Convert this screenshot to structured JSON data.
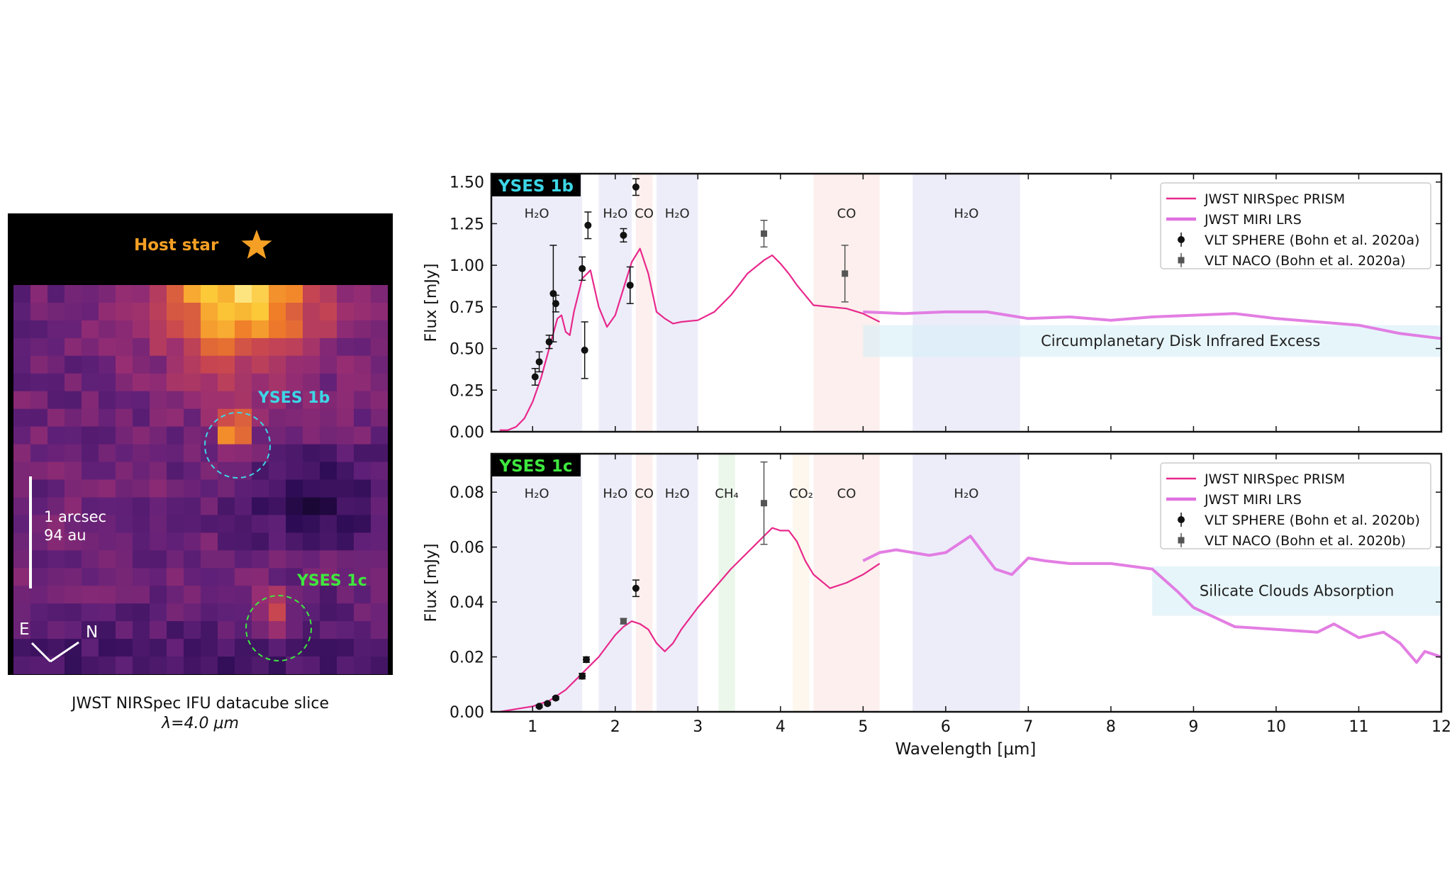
{
  "image_panel": {
    "host_label": "Host star",
    "planet_b_label": "YSES 1b",
    "planet_c_label": "YSES 1c",
    "scalebar_label_1": "1 arcsec",
    "scalebar_label_2": "94 au",
    "compass_east": "E",
    "compass_north": "N",
    "caption_line1": "JWST NIRSpec IFU datacube slice",
    "caption_line2": "λ=4.0 μm",
    "colors": {
      "host": "#f5a024",
      "planet_b": "#3dd6e6",
      "planet_c": "#3ee83e"
    }
  },
  "chart_data": [
    {
      "type": "line",
      "panel_label": "YSES 1b",
      "panel_label_color": "#3dd6e6",
      "ylabel": "Flux [mJy]",
      "xlabel": "",
      "xlim": [
        0.5,
        12.0
      ],
      "ylim": [
        0.0,
        1.55
      ],
      "yticks": [
        0.0,
        0.25,
        0.5,
        0.75,
        1.0,
        1.25,
        1.5
      ],
      "ytick_labels": [
        "0.00",
        "0.25",
        "0.50",
        "0.75",
        "1.00",
        "1.25",
        "1.50"
      ],
      "xticks": [
        1,
        2,
        3,
        4,
        5,
        6,
        7,
        8,
        9,
        10,
        11,
        12
      ],
      "bands": [
        {
          "x0": 0.5,
          "x1": 1.6,
          "label": "H₂O",
          "color": "#9b9be6"
        },
        {
          "x0": 1.8,
          "x1": 2.2,
          "label": "H₂O",
          "color": "#9b9be6"
        },
        {
          "x0": 2.25,
          "x1": 2.45,
          "label": "CO",
          "color": "#f0a59b"
        },
        {
          "x0": 2.5,
          "x1": 3.0,
          "label": "H₂O",
          "color": "#9b9be6"
        },
        {
          "x0": 4.4,
          "x1": 5.2,
          "label": "CO",
          "color": "#f0a59b"
        },
        {
          "x0": 5.6,
          "x1": 6.9,
          "label": "H₂O",
          "color": "#9b9be6"
        }
      ],
      "feature_box": {
        "x0": 5.0,
        "x1": 12.0,
        "y0": 0.45,
        "y1": 0.64,
        "label": "Circumplanetary Disk Infrared Excess",
        "color": "#d6eef7"
      },
      "series": [
        {
          "name": "JWST NIRSpec PRISM",
          "color": "#e8288c",
          "x": [
            0.6,
            0.7,
            0.8,
            0.9,
            1.0,
            1.1,
            1.2,
            1.3,
            1.35,
            1.4,
            1.45,
            1.5,
            1.6,
            1.7,
            1.8,
            1.9,
            2.0,
            2.1,
            2.2,
            2.3,
            2.4,
            2.5,
            2.6,
            2.7,
            2.8,
            3.0,
            3.2,
            3.4,
            3.6,
            3.8,
            3.9,
            4.0,
            4.1,
            4.2,
            4.4,
            4.6,
            4.8,
            5.0,
            5.2
          ],
          "y": [
            0.01,
            0.01,
            0.03,
            0.08,
            0.18,
            0.32,
            0.5,
            0.68,
            0.7,
            0.6,
            0.58,
            0.72,
            0.92,
            0.97,
            0.75,
            0.63,
            0.7,
            0.86,
            1.02,
            1.1,
            0.95,
            0.72,
            0.68,
            0.65,
            0.66,
            0.67,
            0.72,
            0.82,
            0.95,
            1.03,
            1.06,
            1.01,
            0.95,
            0.88,
            0.76,
            0.75,
            0.74,
            0.71,
            0.66
          ]
        },
        {
          "name": "JWST MIRI LRS",
          "color": "#e070e0",
          "x": [
            5.0,
            5.5,
            6.0,
            6.5,
            7.0,
            7.5,
            8.0,
            8.5,
            9.0,
            9.5,
            10.0,
            10.5,
            11.0,
            11.5,
            12.0
          ],
          "y": [
            0.72,
            0.71,
            0.72,
            0.72,
            0.68,
            0.69,
            0.67,
            0.69,
            0.7,
            0.71,
            0.68,
            0.66,
            0.64,
            0.59,
            0.56
          ]
        }
      ],
      "errorbar_series": [
        {
          "name": "VLT SPHERE (Bohn et al. 2020a)",
          "marker": "circle",
          "color": "#111111",
          "points": [
            [
              1.03,
              0.33,
              0.05
            ],
            [
              1.08,
              0.42,
              0.06
            ],
            [
              1.2,
              0.54,
              0.04
            ],
            [
              1.25,
              0.83,
              0.29
            ],
            [
              1.28,
              0.77,
              0.05
            ],
            [
              1.6,
              0.98,
              0.07
            ],
            [
              1.63,
              0.49,
              0.17
            ],
            [
              1.67,
              1.24,
              0.08
            ],
            [
              2.1,
              1.18,
              0.04
            ],
            [
              2.18,
              0.88,
              0.11
            ],
            [
              2.25,
              1.47,
              0.05
            ]
          ]
        },
        {
          "name": "VLT NACO (Bohn et al. 2020a)",
          "marker": "square",
          "color": "#555555",
          "points": [
            [
              3.8,
              1.19,
              0.08
            ],
            [
              4.78,
              0.95,
              0.17
            ]
          ]
        }
      ]
    },
    {
      "type": "line",
      "panel_label": "YSES 1c",
      "panel_label_color": "#3ee83e",
      "ylabel": "Flux [mJy]",
      "xlabel": "Wavelength [μm]",
      "xlim": [
        0.5,
        12.0
      ],
      "ylim": [
        0.0,
        0.094
      ],
      "yticks": [
        0.0,
        0.02,
        0.04,
        0.06,
        0.08
      ],
      "ytick_labels": [
        "0.00",
        "0.02",
        "0.04",
        "0.06",
        "0.08"
      ],
      "xticks": [
        1,
        2,
        3,
        4,
        5,
        6,
        7,
        8,
        9,
        10,
        11,
        12
      ],
      "bands": [
        {
          "x0": 0.5,
          "x1": 1.6,
          "label": "H₂O",
          "color": "#9b9be6"
        },
        {
          "x0": 1.8,
          "x1": 2.2,
          "label": "H₂O",
          "color": "#9b9be6"
        },
        {
          "x0": 2.25,
          "x1": 2.45,
          "label": "CO",
          "color": "#f0a59b"
        },
        {
          "x0": 2.5,
          "x1": 3.0,
          "label": "H₂O",
          "color": "#9b9be6"
        },
        {
          "x0": 3.25,
          "x1": 3.45,
          "label": "CH₄",
          "color": "#8fd48f"
        },
        {
          "x0": 4.15,
          "x1": 4.35,
          "label": "CO₂",
          "color": "#f5d49b"
        },
        {
          "x0": 4.4,
          "x1": 5.2,
          "label": "CO",
          "color": "#f0a59b"
        },
        {
          "x0": 5.6,
          "x1": 6.9,
          "label": "H₂O",
          "color": "#9b9be6"
        }
      ],
      "feature_box": {
        "x0": 8.5,
        "x1": 12.0,
        "y0": 0.035,
        "y1": 0.053,
        "label": "Silicate Clouds Absorption",
        "color": "#d6eef7"
      },
      "series": [
        {
          "name": "JWST NIRSpec PRISM",
          "color": "#e8288c",
          "x": [
            0.6,
            0.8,
            1.0,
            1.2,
            1.4,
            1.6,
            1.7,
            1.8,
            1.9,
            2.0,
            2.1,
            2.2,
            2.3,
            2.4,
            2.5,
            2.6,
            2.7,
            2.8,
            3.0,
            3.2,
            3.4,
            3.6,
            3.8,
            3.9,
            4.0,
            4.1,
            4.2,
            4.3,
            4.4,
            4.6,
            4.8,
            5.0,
            5.2
          ],
          "y": [
            0.0,
            0.001,
            0.002,
            0.004,
            0.008,
            0.014,
            0.017,
            0.02,
            0.024,
            0.028,
            0.031,
            0.033,
            0.032,
            0.03,
            0.025,
            0.022,
            0.025,
            0.03,
            0.038,
            0.045,
            0.052,
            0.058,
            0.064,
            0.067,
            0.066,
            0.066,
            0.062,
            0.055,
            0.05,
            0.045,
            0.047,
            0.05,
            0.054
          ]
        },
        {
          "name": "JWST MIRI LRS",
          "color": "#e070e0",
          "x": [
            5.0,
            5.2,
            5.4,
            5.6,
            5.8,
            6.0,
            6.2,
            6.3,
            6.4,
            6.6,
            6.8,
            7.0,
            7.2,
            7.5,
            8.0,
            8.5,
            8.8,
            9.0,
            9.5,
            10.0,
            10.5,
            10.7,
            11.0,
            11.3,
            11.5,
            11.7,
            11.8,
            12.0
          ],
          "y": [
            0.055,
            0.058,
            0.059,
            0.058,
            0.057,
            0.058,
            0.062,
            0.064,
            0.06,
            0.052,
            0.05,
            0.056,
            0.055,
            0.054,
            0.054,
            0.052,
            0.044,
            0.038,
            0.031,
            0.03,
            0.029,
            0.032,
            0.027,
            0.029,
            0.025,
            0.018,
            0.022,
            0.02
          ]
        }
      ],
      "errorbar_series": [
        {
          "name": "VLT SPHERE (Bohn et al. 2020b)",
          "marker": "circle",
          "color": "#111111",
          "points": [
            [
              1.08,
              0.002,
              0.0005
            ],
            [
              1.18,
              0.003,
              0.0005
            ],
            [
              1.28,
              0.005,
              0.0005
            ],
            [
              1.6,
              0.013,
              0.001
            ],
            [
              1.65,
              0.019,
              0.001
            ],
            [
              2.25,
              0.045,
              0.003
            ]
          ]
        },
        {
          "name": "VLT NACO (Bohn et al. 2020b)",
          "marker": "square",
          "color": "#555555",
          "points": [
            [
              2.1,
              0.033,
              0.001
            ],
            [
              3.8,
              0.076,
              0.015
            ]
          ]
        }
      ]
    }
  ]
}
